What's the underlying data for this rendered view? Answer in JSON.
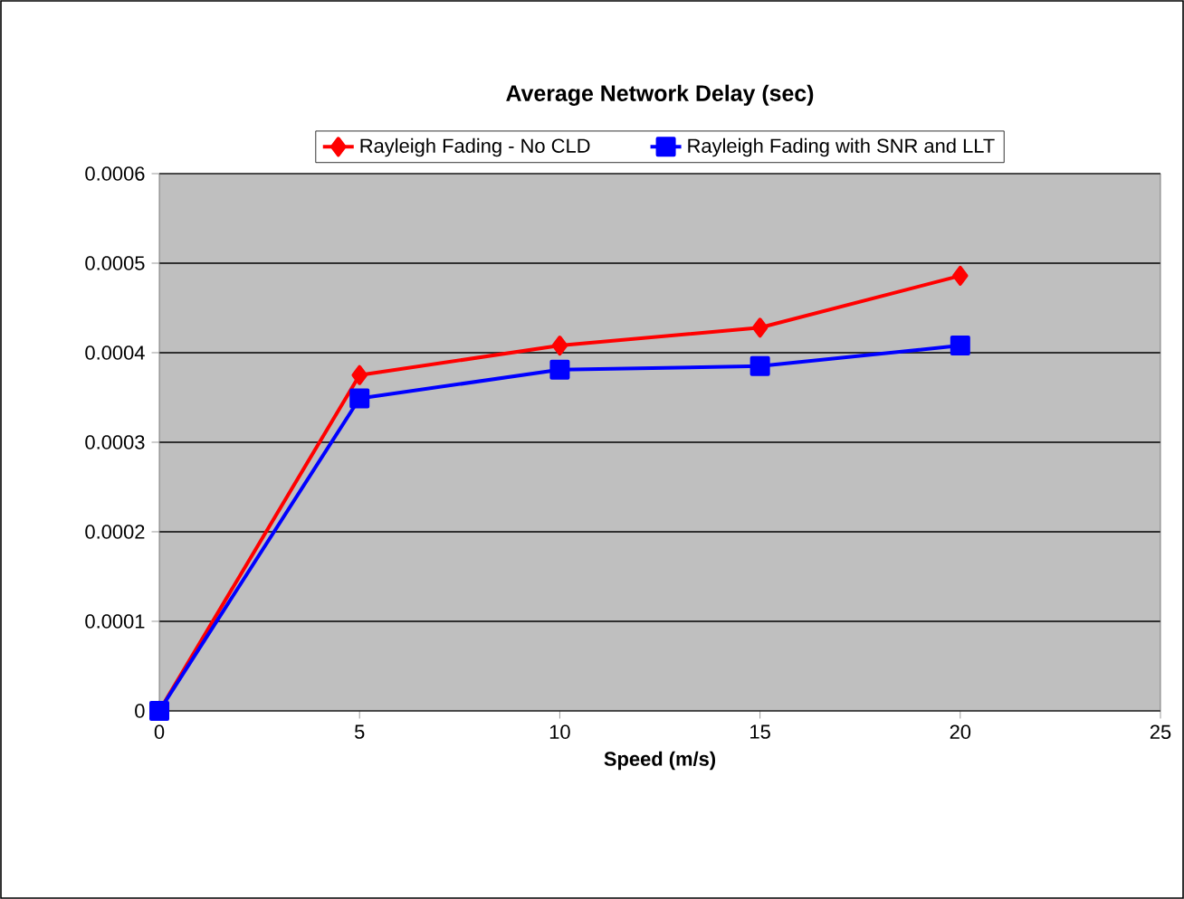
{
  "chart_data": {
    "type": "line",
    "title": "Average Network Delay (sec)",
    "xlabel": "Speed (m/s)",
    "xlim": [
      0,
      25
    ],
    "xticks": [
      0,
      5,
      10,
      15,
      20,
      25
    ],
    "ylim": [
      0,
      0.0006
    ],
    "yticks": [
      0,
      0.0001,
      0.0002,
      0.0003,
      0.0004,
      0.0005,
      0.0006
    ],
    "grid": "y",
    "legend": "top",
    "series": [
      {
        "name": "Rayleigh Fading - No CLD",
        "color": "#ff0000",
        "marker": "diamond",
        "x": [
          0,
          5,
          10,
          15,
          20
        ],
        "values": [
          0,
          0.000375,
          0.000408,
          0.000428,
          0.000486
        ]
      },
      {
        "name": "Rayleigh Fading with SNR and LLT",
        "color": "#0000ff",
        "marker": "square",
        "x": [
          0,
          5,
          10,
          15,
          20
        ],
        "values": [
          0,
          0.000349,
          0.000381,
          0.000385,
          0.000408
        ]
      }
    ]
  }
}
